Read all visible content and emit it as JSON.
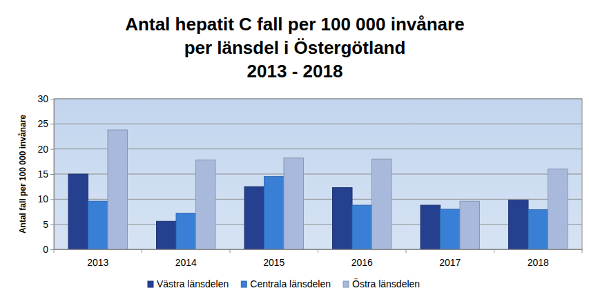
{
  "chart_data": {
    "type": "bar",
    "title": "Antal hepatit C fall per 100 000 invånare\nper länsdel i Östergötland\n2013 - 2018",
    "y_label": "Antal fall per 100 000 invånare",
    "categories": [
      "2013",
      "2014",
      "2015",
      "2016",
      "2017",
      "2018"
    ],
    "series": [
      {
        "name": "Västra länsdelen",
        "color": "#24408e",
        "values": [
          15,
          5.6,
          12.5,
          12.3,
          8.8,
          9.8
        ]
      },
      {
        "name": "Centrala länsdelen",
        "color": "#3a7fd6",
        "values": [
          9.6,
          7.2,
          14.5,
          8.8,
          8,
          7.9
        ]
      },
      {
        "name": "Östra länsdelen",
        "color": "#a8b9dc",
        "values": [
          23.8,
          17.8,
          18.2,
          18,
          9.6,
          16
        ]
      }
    ],
    "ylim": [
      0,
      30
    ],
    "yticks": [
      0,
      5,
      10,
      15,
      20,
      25,
      30
    ],
    "grid": true,
    "legend": "bottom"
  }
}
